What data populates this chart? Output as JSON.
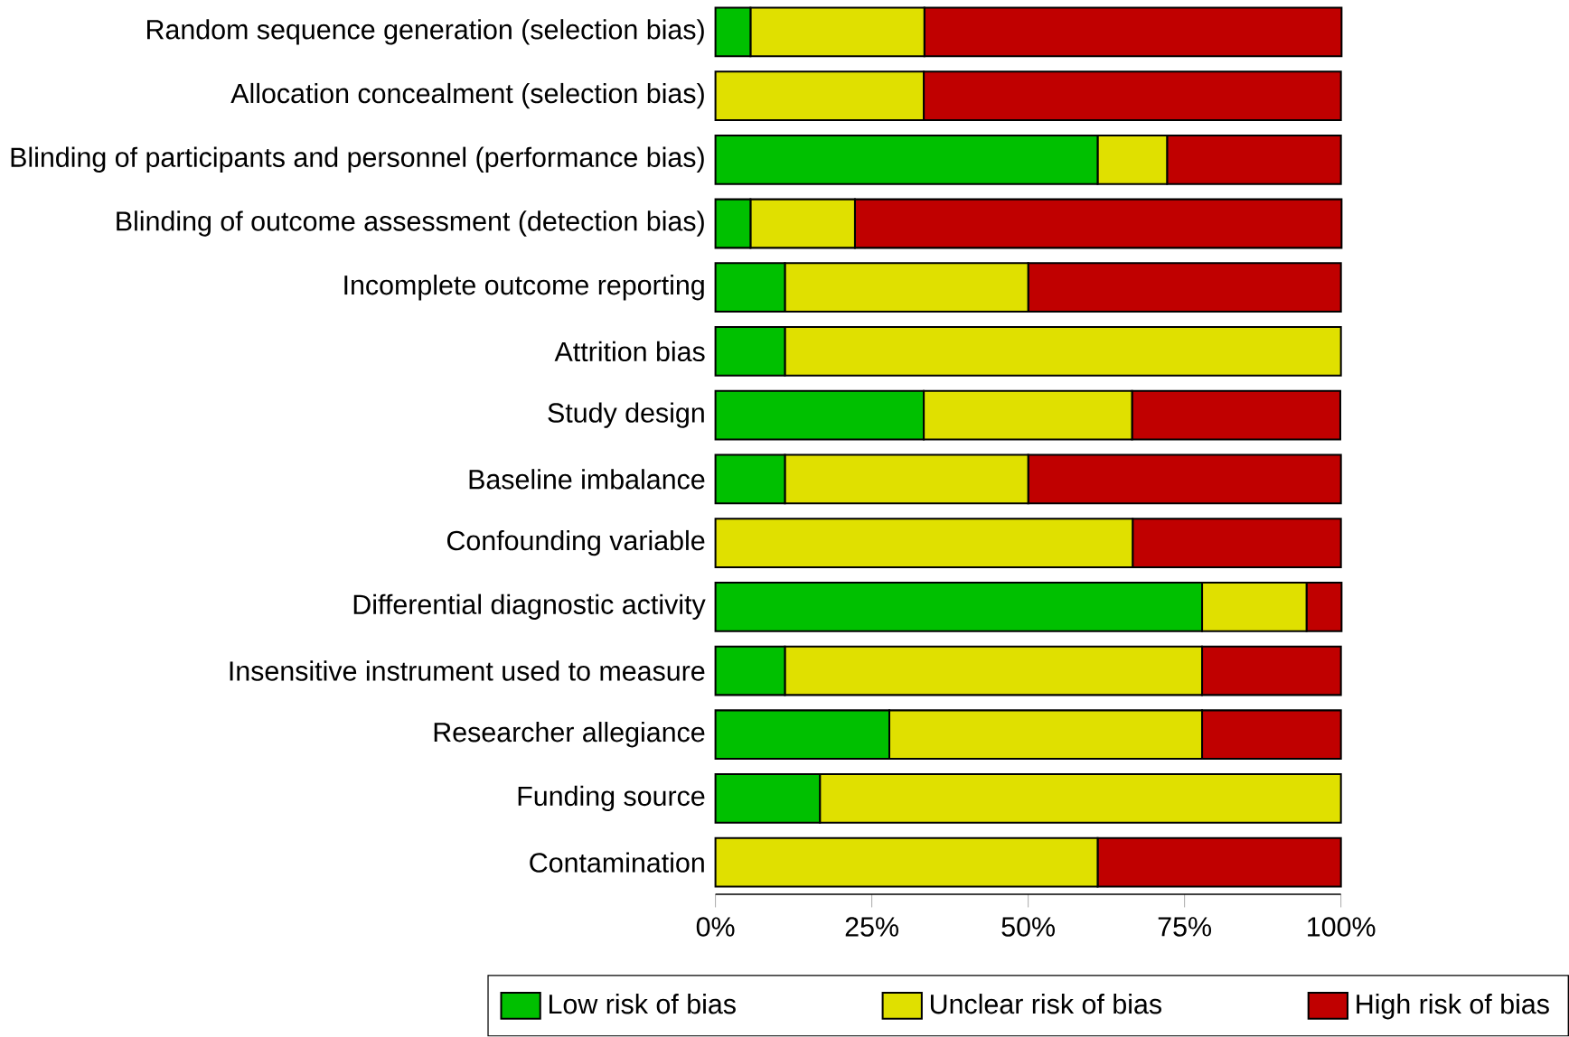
{
  "chart_data": {
    "type": "bar",
    "orientation": "horizontal",
    "stacked": true,
    "categories": [
      "Random sequence generation (selection bias)",
      "Allocation concealment (selection bias)",
      "Blinding of participants and personnel (performance bias)",
      "Blinding of outcome assessment (detection bias)",
      "Incomplete outcome reporting",
      "Attrition bias",
      "Study design",
      "Baseline imbalance",
      "Confounding variable",
      "Differential diagnostic activity",
      "Insensitive instrument used to measure",
      "Researcher allegiance",
      "Funding source",
      "Contamination"
    ],
    "series": [
      {
        "name": "Low risk of bias",
        "color": "#00c000",
        "values": [
          5.6,
          0,
          61.1,
          5.6,
          11.1,
          11.1,
          33.3,
          11.1,
          0,
          77.8,
          11.1,
          27.8,
          16.7,
          0
        ]
      },
      {
        "name": "Unclear risk of bias",
        "color": "#e0e000",
        "values": [
          27.8,
          33.3,
          11.1,
          16.7,
          38.9,
          88.9,
          33.3,
          38.9,
          66.7,
          16.7,
          66.7,
          50,
          83.3,
          61.1
        ]
      },
      {
        "name": "High risk of bias",
        "color": "#c00000",
        "values": [
          66.7,
          66.7,
          27.8,
          77.8,
          50,
          0,
          33.3,
          50,
          33.3,
          5.6,
          22.2,
          22.2,
          0,
          38.9
        ]
      }
    ],
    "xlim": [
      0,
      100
    ],
    "xticks": [
      {
        "value": 0,
        "label": "0%"
      },
      {
        "value": 25,
        "label": "25%"
      },
      {
        "value": 50,
        "label": "50%"
      },
      {
        "value": 75,
        "label": "75%"
      },
      {
        "value": 100,
        "label": "100%"
      }
    ],
    "legend": "bottom"
  }
}
